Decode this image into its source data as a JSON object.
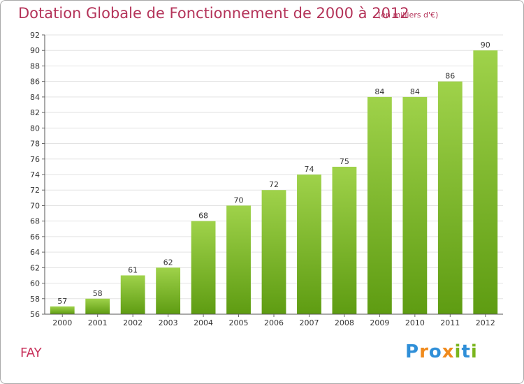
{
  "chart_data": {
    "type": "bar",
    "title": "Dotation Globale de Fonctionnement de 2000 à 2012",
    "unit": "(en milliers d'€)",
    "categories": [
      "2000",
      "2001",
      "2002",
      "2003",
      "2004",
      "2005",
      "2006",
      "2007",
      "2008",
      "2009",
      "2010",
      "2011",
      "2012"
    ],
    "values": [
      57,
      58,
      61,
      62,
      68,
      70,
      72,
      74,
      75,
      84,
      84,
      86,
      90
    ],
    "ylim": [
      56,
      92
    ],
    "yticks": [
      56,
      58,
      60,
      62,
      64,
      66,
      68,
      70,
      72,
      74,
      76,
      78,
      80,
      82,
      84,
      86,
      88,
      90,
      92
    ],
    "grid": true,
    "legend": "none"
  },
  "commune": "FAY",
  "logo": {
    "text": "Proxiti",
    "letters": [
      {
        "ch": "P",
        "color": "#2f8fd8"
      },
      {
        "ch": "r",
        "color": "#f08a1c"
      },
      {
        "ch": "o",
        "color": "#2f8fd8"
      },
      {
        "ch": "x",
        "color": "#f08a1c"
      },
      {
        "ch": "i",
        "color": "#7ab51d"
      },
      {
        "ch": "t",
        "color": "#2f8fd8"
      },
      {
        "ch": "i",
        "color": "#7ab51d"
      }
    ]
  },
  "colors": {
    "title": "#b43359",
    "bar_top": "#9fd24a",
    "bar_bottom": "#5e9c12",
    "grid": "#e3e3e3"
  }
}
